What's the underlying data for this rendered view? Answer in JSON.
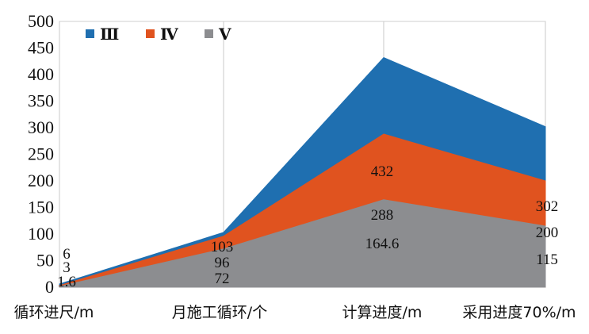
{
  "chart_data": {
    "type": "area",
    "categories": [
      "循环进尺/m",
      "月施工循环/个",
      "计算进度/m",
      "采用进度70%/m"
    ],
    "series": [
      {
        "name": "Ⅲ",
        "color": "#1f6fb0",
        "values": [
          6,
          103,
          432,
          302
        ]
      },
      {
        "name": "Ⅳ",
        "color": "#e0531f",
        "values": [
          3,
          96,
          288,
          200
        ]
      },
      {
        "name": "Ⅴ",
        "color": "#8c8d90",
        "values": [
          1.6,
          72,
          164.6,
          115
        ]
      }
    ],
    "ylim": [
      0,
      500
    ],
    "yticks": [
      "0",
      "50",
      "100",
      "150",
      "200",
      "250",
      "300",
      "350",
      "400",
      "450",
      "500"
    ],
    "grid": "vertical",
    "legend": "top-left",
    "data_labels": [
      [
        "6",
        "103",
        "432",
        "302"
      ],
      [
        "3",
        "96",
        "288",
        "200"
      ],
      [
        "1.6",
        "72",
        "164.6",
        "115"
      ]
    ]
  }
}
